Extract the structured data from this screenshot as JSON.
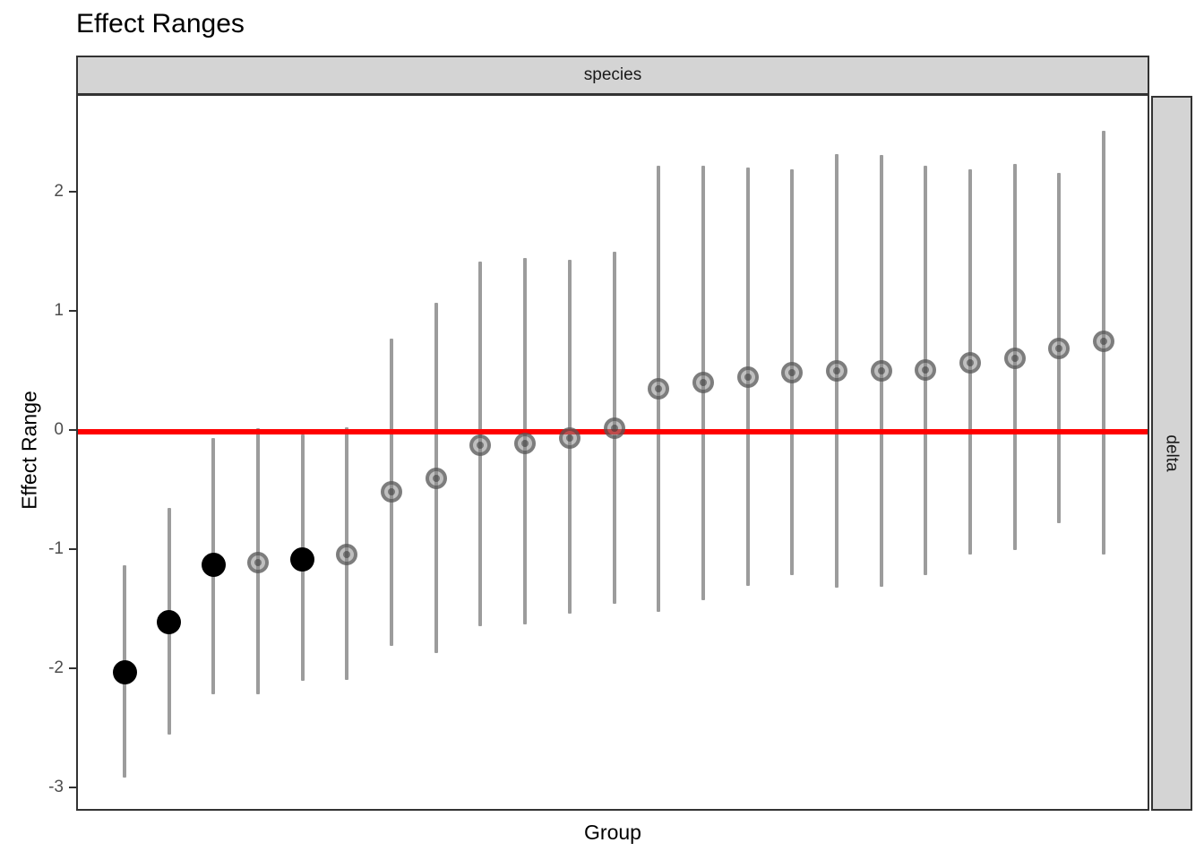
{
  "title": "Effect Ranges",
  "facet": {
    "top": "species",
    "right": "delta"
  },
  "axes": {
    "x_label": "Group",
    "y_label": "Effect Range",
    "y_tick_labels": [
      "2",
      "1",
      "0",
      "-1",
      "-2",
      "-3"
    ],
    "y_tick_values": [
      2,
      1,
      0,
      -1,
      -2,
      -3
    ]
  },
  "reference_line": {
    "y": 0,
    "color": "#ff0000"
  },
  "colors": {
    "significant_point": "#000000",
    "nonsignificant_point_ring": "#5a5a5a",
    "error_bar": "#8c8c8c",
    "strip_background": "#d4d4d4",
    "panel_border": "#333333",
    "tick_label": "#4d4d4d"
  },
  "chart_data": {
    "type": "scatter",
    "title": "Effect Ranges",
    "xlabel": "Group",
    "ylabel": "Effect Range",
    "ylim": [
      -3.2,
      2.85
    ],
    "grid": false,
    "legend": false,
    "facet_row_label": "delta",
    "facet_col_label": "species",
    "x": [
      1,
      2,
      3,
      4,
      5,
      6,
      7,
      8,
      9,
      10,
      11,
      12,
      13,
      14,
      15,
      16,
      17,
      18,
      19,
      20,
      21,
      22,
      23
    ],
    "series": [
      {
        "name": "estimate",
        "values": [
          -2.02,
          -1.6,
          -1.12,
          -1.1,
          -1.07,
          -1.03,
          -0.5,
          -0.39,
          -0.11,
          -0.1,
          -0.05,
          0.03,
          0.36,
          0.41,
          0.46,
          0.5,
          0.51,
          0.51,
          0.52,
          0.58,
          0.62,
          0.7,
          0.76
        ]
      },
      {
        "name": "lower",
        "values": [
          -2.9,
          -2.54,
          -2.2,
          -2.2,
          -2.09,
          -2.08,
          -1.8,
          -1.86,
          -1.63,
          -1.62,
          -1.53,
          -1.44,
          -1.51,
          -1.41,
          -1.29,
          -1.2,
          -1.31,
          -1.3,
          -1.2,
          -1.03,
          -0.99,
          -0.77,
          -1.03
        ]
      },
      {
        "name": "upper",
        "values": [
          -1.12,
          -0.64,
          -0.05,
          0.03,
          -0.02,
          0.04,
          0.78,
          1.08,
          1.43,
          1.46,
          1.44,
          1.51,
          2.23,
          2.23,
          2.22,
          2.2,
          2.33,
          2.32,
          2.23,
          2.2,
          2.25,
          2.17,
          2.53
        ]
      },
      {
        "name": "significant",
        "values": [
          true,
          true,
          true,
          false,
          true,
          false,
          false,
          false,
          false,
          false,
          false,
          false,
          false,
          false,
          false,
          false,
          false,
          false,
          false,
          false,
          false,
          false,
          false
        ]
      }
    ]
  }
}
